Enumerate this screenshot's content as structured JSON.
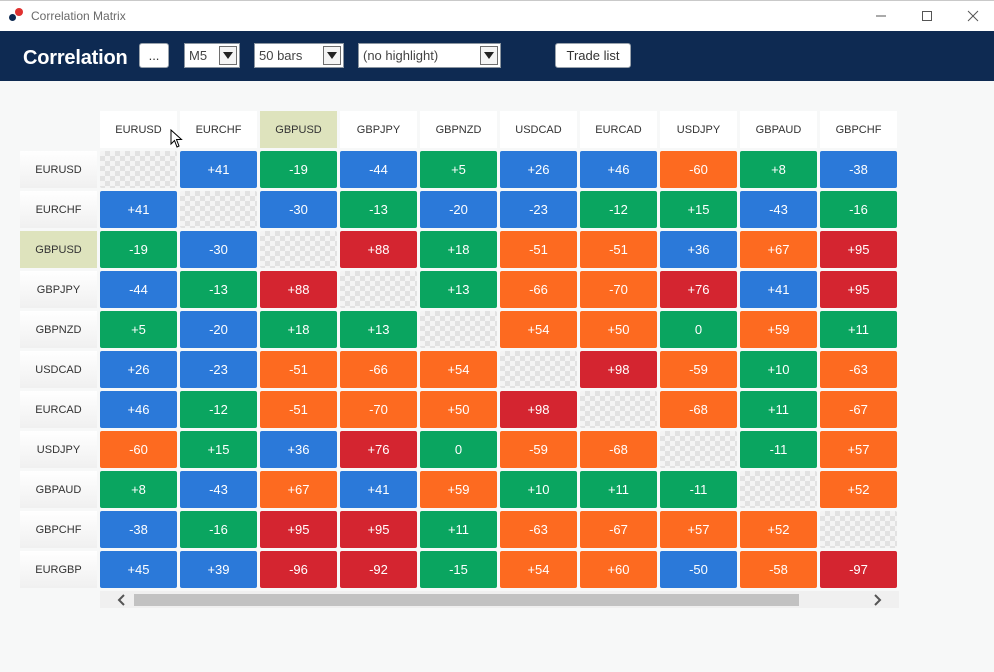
{
  "window": {
    "title": "Correlation Matrix",
    "controls": [
      "minimize",
      "maximize",
      "close"
    ]
  },
  "toolbar": {
    "brand": "Correlation",
    "more_label": "...",
    "timeframe": "M5",
    "bars": "50 bars",
    "highlight": "(no highlight)",
    "trade_list_label": "Trade list"
  },
  "colors": {
    "header_bg": "#0e2a52",
    "strong_positive": "#d42530",
    "positive": "#fd6a20",
    "neutral": "#0aa560",
    "negative": "#2b79d9",
    "highlight": "#dee3bd"
  },
  "matrix": {
    "highlighted_symbol": "GBPUSD",
    "columns": [
      "EURUSD",
      "EURCHF",
      "GBPUSD",
      "GBPJPY",
      "GBPNZD",
      "USDCAD",
      "EURCAD",
      "USDJPY",
      "GBPAUD",
      "GBPCHF"
    ],
    "rows": [
      {
        "label": "EURUSD",
        "values": [
          "",
          "+41",
          "-19",
          "-44",
          "+5",
          "+26",
          "+46",
          "-60",
          "+8",
          "-38"
        ],
        "colors": [
          "diag",
          "negative",
          "neutral",
          "negative",
          "neutral",
          "negative",
          "negative",
          "positive",
          "neutral",
          "negative"
        ]
      },
      {
        "label": "EURCHF",
        "values": [
          "+41",
          "",
          "-30",
          "-13",
          "-20",
          "-23",
          "-12",
          "+15",
          "-43",
          "-16"
        ],
        "colors": [
          "negative",
          "diag",
          "negative",
          "neutral",
          "negative",
          "negative",
          "neutral",
          "neutral",
          "negative",
          "neutral"
        ]
      },
      {
        "label": "GBPUSD",
        "values": [
          "-19",
          "-30",
          "",
          "+88",
          "+18",
          "-51",
          "-51",
          "+36",
          "+67",
          "+95"
        ],
        "colors": [
          "neutral",
          "negative",
          "diag",
          "strong_positive",
          "neutral",
          "positive",
          "positive",
          "negative",
          "positive",
          "strong_positive"
        ]
      },
      {
        "label": "GBPJPY",
        "values": [
          "-44",
          "-13",
          "+88",
          "",
          "+13",
          "-66",
          "-70",
          "+76",
          "+41",
          "+95"
        ],
        "colors": [
          "negative",
          "neutral",
          "strong_positive",
          "diag",
          "neutral",
          "positive",
          "positive",
          "strong_positive",
          "negative",
          "strong_positive"
        ]
      },
      {
        "label": "GBPNZD",
        "values": [
          "+5",
          "-20",
          "+18",
          "+13",
          "",
          "+54",
          "+50",
          "0",
          "+59",
          "+11"
        ],
        "colors": [
          "neutral",
          "negative",
          "neutral",
          "neutral",
          "diag",
          "positive",
          "positive",
          "neutral",
          "positive",
          "neutral"
        ]
      },
      {
        "label": "USDCAD",
        "values": [
          "+26",
          "-23",
          "-51",
          "-66",
          "+54",
          "",
          "+98",
          "-59",
          "+10",
          "-63"
        ],
        "colors": [
          "negative",
          "negative",
          "positive",
          "positive",
          "positive",
          "diag",
          "strong_positive",
          "positive",
          "neutral",
          "positive"
        ]
      },
      {
        "label": "EURCAD",
        "values": [
          "+46",
          "-12",
          "-51",
          "-70",
          "+50",
          "+98",
          "",
          "-68",
          "+11",
          "-67"
        ],
        "colors": [
          "negative",
          "neutral",
          "positive",
          "positive",
          "positive",
          "strong_positive",
          "diag",
          "positive",
          "neutral",
          "positive"
        ]
      },
      {
        "label": "USDJPY",
        "values": [
          "-60",
          "+15",
          "+36",
          "+76",
          "0",
          "-59",
          "-68",
          "",
          "-11",
          "+57"
        ],
        "colors": [
          "positive",
          "neutral",
          "negative",
          "strong_positive",
          "neutral",
          "positive",
          "positive",
          "diag",
          "neutral",
          "positive"
        ]
      },
      {
        "label": "GBPAUD",
        "values": [
          "+8",
          "-43",
          "+67",
          "+41",
          "+59",
          "+10",
          "+11",
          "-11",
          "",
          "+52"
        ],
        "colors": [
          "neutral",
          "negative",
          "positive",
          "negative",
          "positive",
          "neutral",
          "neutral",
          "neutral",
          "diag",
          "positive"
        ]
      },
      {
        "label": "GBPCHF",
        "values": [
          "-38",
          "-16",
          "+95",
          "+95",
          "+11",
          "-63",
          "-67",
          "+57",
          "+52",
          ""
        ],
        "colors": [
          "negative",
          "neutral",
          "strong_positive",
          "strong_positive",
          "neutral",
          "positive",
          "positive",
          "positive",
          "positive",
          "diag"
        ]
      },
      {
        "label": "EURGBP",
        "values": [
          "+45",
          "+39",
          "-96",
          "-92",
          "-15",
          "+54",
          "+60",
          "-50",
          "-58",
          "-97"
        ],
        "colors": [
          "negative",
          "negative",
          "strong_positive",
          "strong_positive",
          "neutral",
          "positive",
          "positive",
          "negative",
          "positive",
          "strong_positive"
        ]
      }
    ]
  }
}
